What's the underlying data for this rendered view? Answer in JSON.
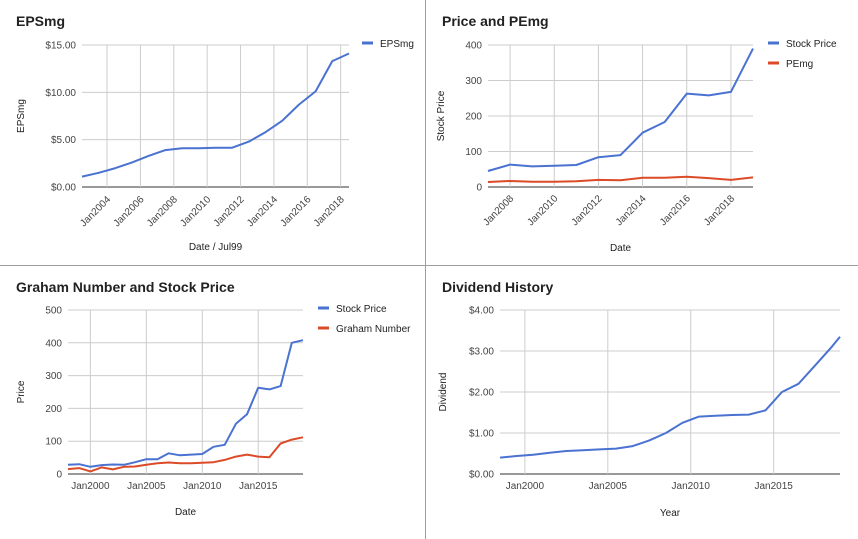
{
  "chart_data": [
    {
      "type": "line",
      "title": "EPSmg",
      "xlabel": "Date / Jul99",
      "ylabel": "EPSmg",
      "x_ticks": [
        "Jan2004",
        "Jan2006",
        "Jan2008",
        "Jan2010",
        "Jan2012",
        "Jan2014",
        "Jan2016",
        "Jan2018"
      ],
      "y_ticks": [
        "$0.00",
        "$5.00",
        "$10.00",
        "$15.00"
      ],
      "xlim": [
        2002.5,
        2018.5
      ],
      "ylim": [
        0,
        15
      ],
      "x_tick_values": [
        2004,
        2006,
        2008,
        2010,
        2012,
        2014,
        2016,
        2018
      ],
      "y_tick_values": [
        0,
        5,
        10,
        15
      ],
      "x_labels_rotated": true,
      "legend_position": "right",
      "series": [
        {
          "name": "EPSmg",
          "color": "#4a72d1",
          "x": [
            2002.5,
            2003.5,
            2004.5,
            2005.5,
            2006.5,
            2007.5,
            2008.5,
            2009.5,
            2010.5,
            2011.5,
            2012.5,
            2013.5,
            2014.5,
            2015.5,
            2016.5,
            2017.5,
            2018.5
          ],
          "y": [
            1.1,
            1.5,
            2.0,
            2.6,
            3.3,
            3.9,
            4.1,
            4.1,
            4.15,
            4.15,
            4.8,
            5.8,
            7.0,
            8.7,
            10.1,
            13.3,
            14.1
          ]
        }
      ]
    },
    {
      "type": "line",
      "title": "Price and PEmg",
      "xlabel": "Date",
      "ylabel": "Stock Price",
      "x_ticks": [
        "Jan2008",
        "Jan2010",
        "Jan2012",
        "Jan2014",
        "Jan2016",
        "Jan2018"
      ],
      "y_ticks": [
        "0",
        "100",
        "200",
        "300",
        "400"
      ],
      "xlim": [
        2007.0,
        2019.0
      ],
      "ylim": [
        0,
        400
      ],
      "x_tick_values": [
        2008,
        2010,
        2012,
        2014,
        2016,
        2018
      ],
      "y_tick_values": [
        0,
        100,
        200,
        300,
        400
      ],
      "x_labels_rotated": true,
      "legend_position": "right",
      "series": [
        {
          "name": "Stock Price",
          "color": "#4a72d1",
          "x": [
            2007.0,
            2008.0,
            2009.0,
            2010.0,
            2011.0,
            2012.0,
            2013.0,
            2014.0,
            2015.0,
            2016.0,
            2017.0,
            2018.0,
            2019.0
          ],
          "y": [
            45,
            63,
            58,
            60,
            62,
            84,
            90,
            153,
            183,
            263,
            258,
            268,
            390
          ]
        },
        {
          "name": "PEmg",
          "color": "#dc4b27",
          "x": [
            2007.0,
            2008.0,
            2009.0,
            2010.0,
            2011.0,
            2012.0,
            2013.0,
            2014.0,
            2015.0,
            2016.0,
            2017.0,
            2018.0,
            2019.0
          ],
          "y": [
            14,
            17,
            15,
            15,
            16,
            20,
            19,
            26,
            26,
            29,
            25,
            20,
            27
          ]
        }
      ]
    },
    {
      "type": "line",
      "title": "Graham Number and Stock Price",
      "xlabel": "Date",
      "ylabel": "Price",
      "x_ticks": [
        "Jan2000",
        "Jan2005",
        "Jan2010",
        "Jan2015"
      ],
      "y_ticks": [
        "0",
        "100",
        "200",
        "300",
        "400",
        "500"
      ],
      "xlim": [
        1998.0,
        2019.0
      ],
      "ylim": [
        0,
        500
      ],
      "x_tick_values": [
        2000,
        2005,
        2010,
        2015
      ],
      "y_tick_values": [
        0,
        100,
        200,
        300,
        400,
        500
      ],
      "x_labels_rotated": false,
      "legend_position": "right",
      "series": [
        {
          "name": "Stock Price",
          "color": "#4a72d1",
          "x": [
            1998.0,
            1999.0,
            2000.0,
            2001.0,
            2002.0,
            2003.0,
            2004.0,
            2005.0,
            2006.0,
            2007.0,
            2008.0,
            2009.0,
            2010.0,
            2011.0,
            2012.0,
            2013.0,
            2014.0,
            2015.0,
            2016.0,
            2017.0,
            2018.0,
            2019.0
          ],
          "y": [
            28,
            30,
            22,
            27,
            29,
            28,
            36,
            45,
            45,
            63,
            57,
            59,
            61,
            83,
            89,
            153,
            182,
            263,
            258,
            268,
            400,
            408
          ]
        },
        {
          "name": "Graham Number",
          "color": "#dc4b27",
          "x": [
            1998.0,
            1999.0,
            2000.0,
            2001.0,
            2002.0,
            2003.0,
            2004.0,
            2005.0,
            2006.0,
            2007.0,
            2008.0,
            2009.0,
            2010.0,
            2011.0,
            2012.0,
            2013.0,
            2014.0,
            2015.0,
            2016.0,
            2017.0,
            2018.0,
            2019.0
          ],
          "y": [
            15,
            18,
            8,
            20,
            14,
            22,
            23,
            28,
            33,
            35,
            33,
            33,
            34,
            36,
            43,
            53,
            59,
            53,
            51,
            93,
            105,
            112
          ]
        }
      ]
    },
    {
      "type": "line",
      "title": "Dividend History",
      "xlabel": "Year",
      "ylabel": "Dividend",
      "x_ticks": [
        "Jan2000",
        "Jan2005",
        "Jan2010",
        "Jan2015"
      ],
      "y_ticks": [
        "$0.00",
        "$1.00",
        "$2.00",
        "$3.00",
        "$4.00"
      ],
      "xlim": [
        1998.5,
        2019.0
      ],
      "ylim": [
        0,
        4
      ],
      "x_tick_values": [
        2000,
        2005,
        2010,
        2015
      ],
      "y_tick_values": [
        0,
        1,
        2,
        3,
        4
      ],
      "x_labels_rotated": false,
      "legend_position": "none",
      "series": [
        {
          "name": "",
          "color": "#4a72d1",
          "x": [
            1998.5,
            1999.5,
            2000.5,
            2001.5,
            2002.5,
            2003.5,
            2004.5,
            2005.5,
            2006.5,
            2007.5,
            2008.5,
            2009.5,
            2010.5,
            2011.5,
            2012.5,
            2013.5,
            2014.5,
            2015.5,
            2016.5,
            2017.5,
            2018.5,
            2019.0
          ],
          "y": [
            0.4,
            0.44,
            0.47,
            0.52,
            0.56,
            0.58,
            0.6,
            0.62,
            0.68,
            0.82,
            1.0,
            1.25,
            1.4,
            1.42,
            1.44,
            1.45,
            1.55,
            2.0,
            2.2,
            2.65,
            3.1,
            3.35
          ]
        }
      ]
    }
  ]
}
